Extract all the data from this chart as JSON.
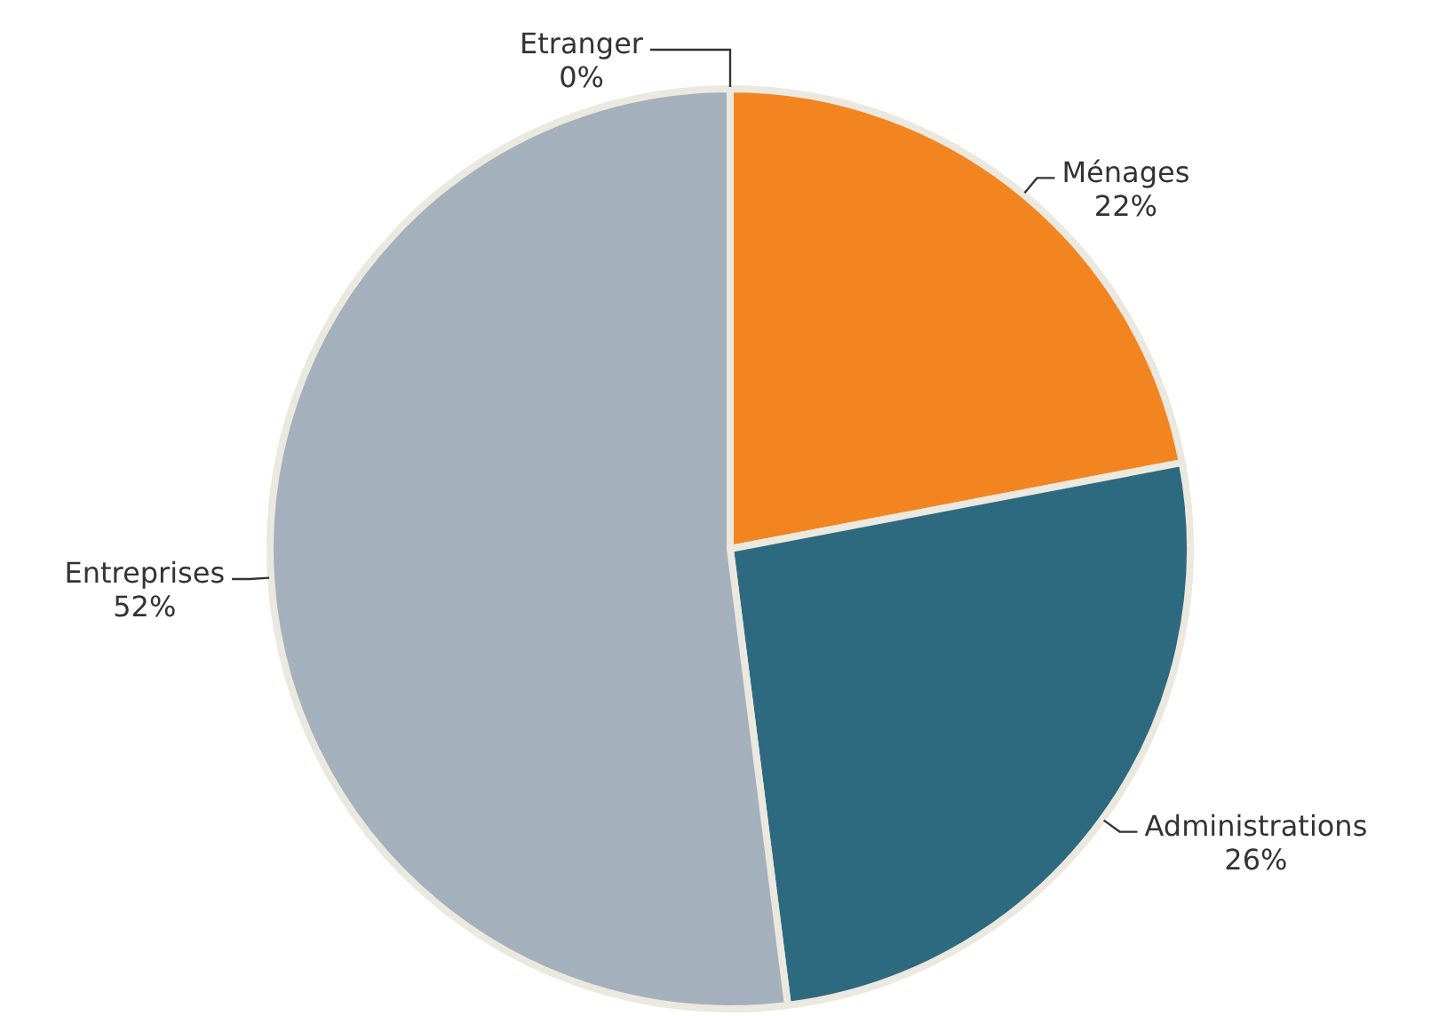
{
  "chart_data": {
    "type": "pie",
    "categories": [
      "Ménages",
      "Administrations",
      "Entreprises",
      "Etranger"
    ],
    "values": [
      22,
      26,
      52,
      0
    ],
    "value_labels": [
      "22%",
      "26%",
      "52%",
      "0%"
    ],
    "colors": [
      "#f28520",
      "#2e6a7f",
      "#a5b0bd",
      "#f5c242"
    ],
    "legend": false
  }
}
